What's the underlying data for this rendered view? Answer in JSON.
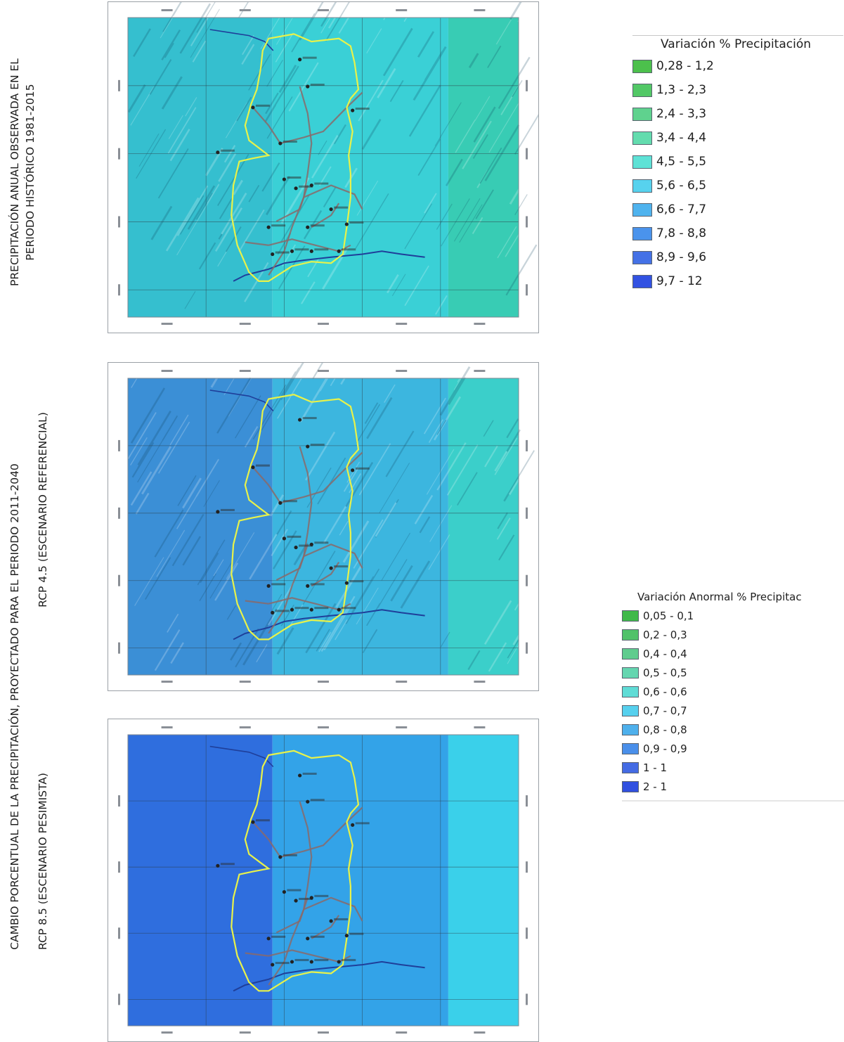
{
  "labels": {
    "historic_line1": "PRECIPITACIÓN ANUAL OBSERVADA EN EL",
    "historic_line2": "PERIODO HISTÓRICO 1981-2015",
    "projection_line1": "CAMBIO PORCENTUAL DE LA PRECIPITACIÓN, PROYECTADO PARA EL PERIODO 2011-2040",
    "rcp45": "RCP 4.5 (ESCENARIO REFERENCIAL)",
    "rcp85": "RCP 8.5 (ESCENARIO PESIMISTA)"
  },
  "legend1": {
    "title": "Variación % Precipitación",
    "items": [
      {
        "label": "0,28 - 1,2",
        "color": "#4cc04c"
      },
      {
        "label": "1,3 - 2,3",
        "color": "#52c866"
      },
      {
        "label": "2,4 - 3,3",
        "color": "#5fd28e"
      },
      {
        "label": "3,4 - 4,4",
        "color": "#63dcae"
      },
      {
        "label": "4,5 - 5,5",
        "color": "#5ee2d6"
      },
      {
        "label": "5,6 - 6,5",
        "color": "#57d2ee"
      },
      {
        "label": "6,6 - 7,7",
        "color": "#4fb3ee"
      },
      {
        "label": "7,8 - 8,8",
        "color": "#4a93ec"
      },
      {
        "label": "8,9 - 9,6",
        "color": "#4471e6"
      },
      {
        "label": "9,7 - 12",
        "color": "#3252e2"
      }
    ]
  },
  "legend2": {
    "title": "Variación Anormal % Precipitac",
    "items": [
      {
        "label": "0,05 - 0,1",
        "color": "#3fb94a"
      },
      {
        "label": "0,2 - 0,3",
        "color": "#50c26a"
      },
      {
        "label": "0,4 - 0,4",
        "color": "#5fcc8e"
      },
      {
        "label": "0,5 - 0,5",
        "color": "#65d6b0"
      },
      {
        "label": "0,6 - 0,6",
        "color": "#5fdcd6"
      },
      {
        "label": "0,7 - 0,7",
        "color": "#56d0ee"
      },
      {
        "label": "0,8 - 0,8",
        "color": "#4eb0ec"
      },
      {
        "label": "0,9 - 0,9",
        "color": "#4a8fea"
      },
      {
        "label": "1 - 1",
        "color": "#446be4"
      },
      {
        "label": "2 - 1",
        "color": "#3050e0"
      }
    ]
  },
  "maps": [
    {
      "zones": [
        "#35bfcf",
        "#3ad0d6",
        "#38ccb4"
      ],
      "hillshade": true
    },
    {
      "zones": [
        "#3b8fd6",
        "#3cb6df",
        "#3bcfca"
      ],
      "hillshade": true
    },
    {
      "zones": [
        "#2f6ede",
        "#33a3e8",
        "#3ad0ea"
      ],
      "hillshade": false
    }
  ]
}
